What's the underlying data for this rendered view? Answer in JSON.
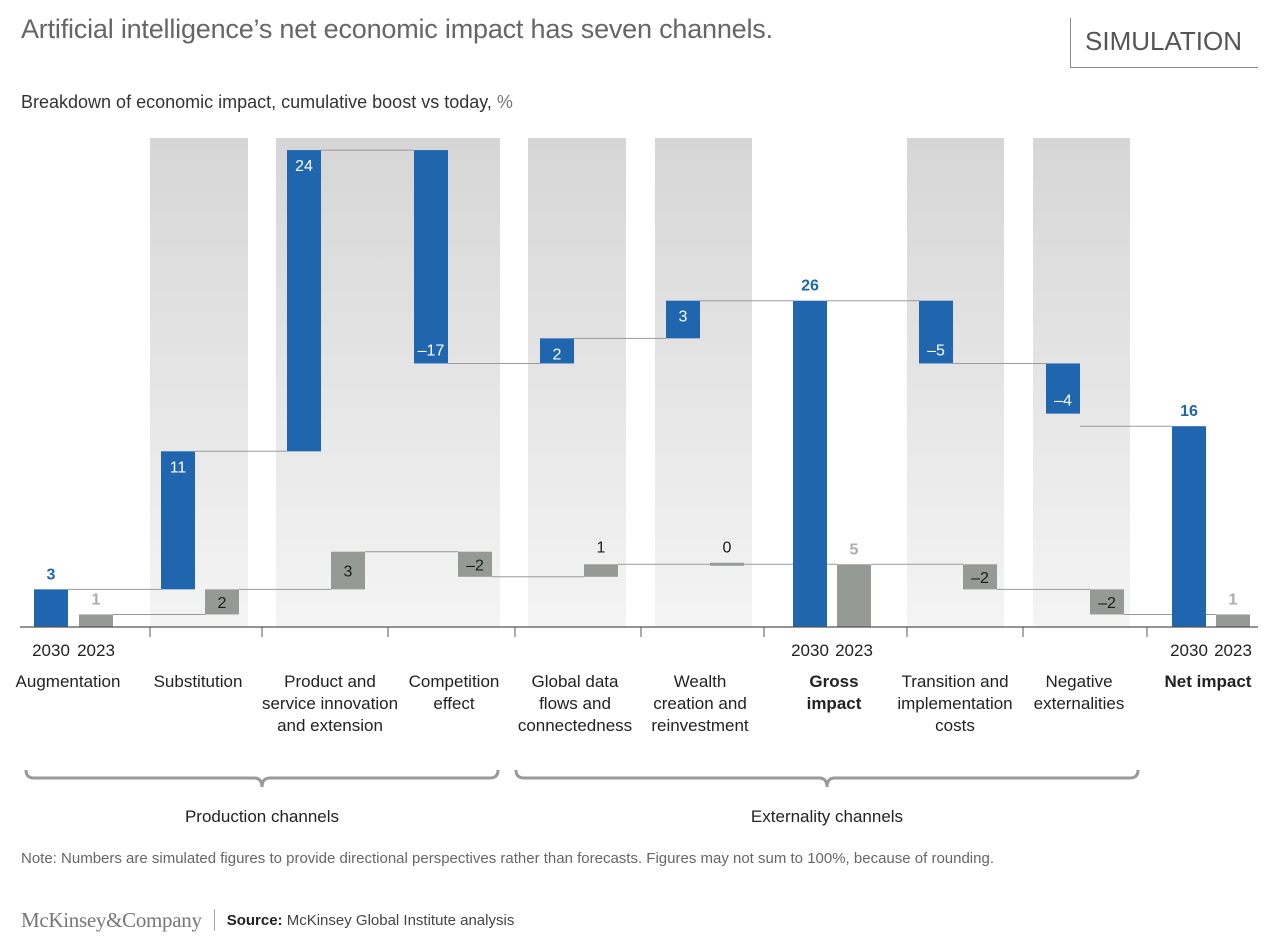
{
  "header": {
    "title": "Artificial intelligence’s net economic impact has seven channels.",
    "badge": "SIMULATION",
    "subtitle": "Breakdown of economic impact, cumulative boost vs today,",
    "subtitle_unit": " %"
  },
  "colors": {
    "series_2030": "#1f66ae",
    "series_2023": "#959a97",
    "column_shade_top": "#d6d6d6",
    "column_shade_bottom": "#f4f4f4",
    "connector": "#9a9a9a",
    "axis": "#555555"
  },
  "chart_data": {
    "type": "waterfall",
    "title": "Breakdown of economic impact, cumulative boost vs today, %",
    "unit": "%",
    "series": [
      {
        "name": "2030",
        "values": [
          3,
          11,
          24,
          -17,
          2,
          3,
          26,
          -5,
          -4,
          16
        ]
      },
      {
        "name": "2023",
        "values": [
          1,
          2,
          3,
          -2,
          1,
          0,
          5,
          -2,
          -2,
          1
        ]
      }
    ],
    "categories": [
      {
        "key": "augmentation",
        "label": [
          "Augmentation"
        ],
        "kind": "total",
        "bold": false
      },
      {
        "key": "substitution",
        "label": [
          "Substitution"
        ],
        "kind": "delta",
        "bold": false
      },
      {
        "key": "innovation",
        "label": [
          "Product and",
          "service innovation",
          "and extension"
        ],
        "kind": "delta",
        "bold": false
      },
      {
        "key": "competition",
        "label": [
          "Competition",
          "effect"
        ],
        "kind": "delta",
        "bold": false
      },
      {
        "key": "data-flows",
        "label": [
          "Global data",
          "flows and",
          "connectedness"
        ],
        "kind": "delta",
        "bold": false
      },
      {
        "key": "wealth",
        "label": [
          "Wealth",
          "creation and",
          "reinvestment"
        ],
        "kind": "delta",
        "bold": false
      },
      {
        "key": "gross",
        "label": [
          "Gross",
          "impact"
        ],
        "kind": "total",
        "bold": true
      },
      {
        "key": "transition",
        "label": [
          "Transition and",
          "implementation",
          "costs"
        ],
        "kind": "delta",
        "bold": false
      },
      {
        "key": "negative",
        "label": [
          "Negative",
          "externalities"
        ],
        "kind": "delta",
        "bold": false
      },
      {
        "key": "net",
        "label": [
          "Net impact"
        ],
        "kind": "total",
        "bold": true
      }
    ],
    "year_labels": {
      "first": "2030",
      "second": "2023"
    },
    "year_label_columns": [
      "augmentation",
      "gross",
      "net"
    ],
    "groups": [
      {
        "label": "Production channels",
        "from": "augmentation",
        "to": "competition"
      },
      {
        "label": "Externality channels",
        "from": "data-flows",
        "to": "negative"
      }
    ],
    "ylim": [
      0,
      40
    ],
    "grid": false,
    "legend": "none"
  },
  "footer": {
    "note": "Note: Numbers are simulated figures to provide directional perspectives rather than forecasts. Figures may not sum to 100%, because of rounding.",
    "logo": "McKinsey&Company",
    "source_label": "Source:",
    "source_text": " McKinsey Global Institute analysis"
  }
}
